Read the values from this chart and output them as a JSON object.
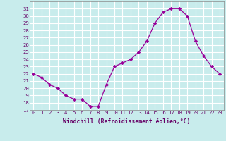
{
  "hours": [
    0,
    1,
    2,
    3,
    4,
    5,
    6,
    7,
    8,
    9,
    10,
    11,
    12,
    13,
    14,
    15,
    16,
    17,
    18,
    19,
    20,
    21,
    22,
    23
  ],
  "values": [
    22,
    21.5,
    20.5,
    20,
    19,
    18.5,
    18.5,
    17.5,
    17.5,
    20.5,
    23,
    23.5,
    24,
    25,
    26.5,
    29,
    30.5,
    31,
    31,
    30,
    26.5,
    24.5,
    23,
    22
  ],
  "ylim": [
    17,
    32
  ],
  "yticks": [
    17,
    18,
    19,
    20,
    21,
    22,
    23,
    24,
    25,
    26,
    27,
    28,
    29,
    30,
    31
  ],
  "xlabel": "Windchill (Refroidissement éolien,°C)",
  "line_color": "#990099",
  "marker": "D",
  "marker_size": 2.2,
  "bg_color": "#c8ecec",
  "grid_color": "#ffffff",
  "tick_color": "#660066",
  "label_fontsize": 5.2,
  "xlabel_fontsize": 5.8
}
